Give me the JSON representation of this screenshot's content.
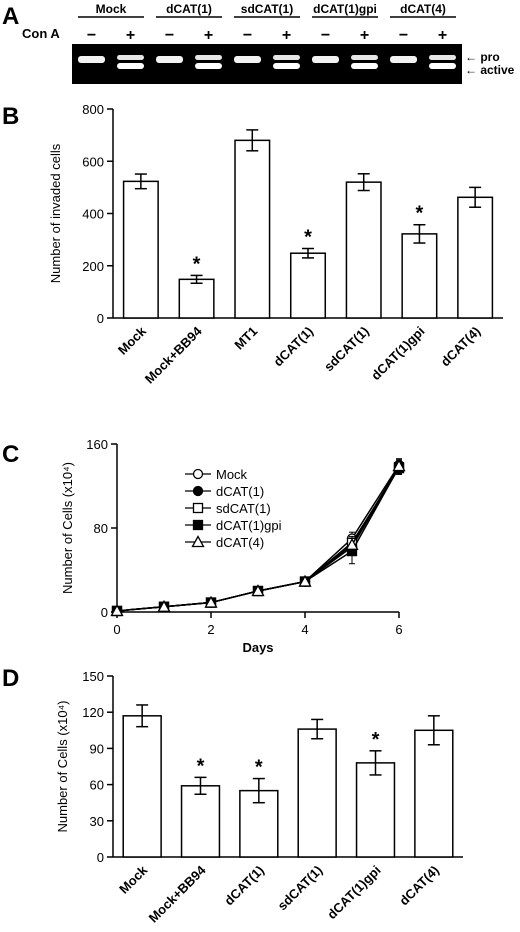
{
  "panels": {
    "a": "A",
    "b": "B",
    "c": "C",
    "d": "D"
  },
  "gel": {
    "lanes": [
      "Mock",
      "dCAT(1)",
      "sdCAT(1)",
      "dCAT(1)gpi",
      "dCAT(4)"
    ],
    "row_label": "Con A",
    "signs": [
      "−",
      "+",
      "−",
      "+",
      "−",
      "+",
      "−",
      "+",
      "−",
      "+"
    ],
    "band_labels": [
      "← pro",
      "← active"
    ]
  },
  "chart_data": [
    {
      "id": "B",
      "type": "bar",
      "categories": [
        "Mock",
        "Mock+BB94",
        "MT1",
        "dCAT(1)",
        "sdCAT(1)",
        "dCAT(1)gpi",
        "dCAT(4)"
      ],
      "values": [
        523,
        148,
        680,
        248,
        520,
        322,
        462
      ],
      "errors": [
        28,
        15,
        40,
        18,
        32,
        35,
        38
      ],
      "significant": [
        false,
        true,
        false,
        true,
        false,
        true,
        false
      ],
      "ylabel": "Number of invaded cells",
      "ylim": [
        0,
        800
      ],
      "yticks": [
        0,
        200,
        400,
        600,
        800
      ],
      "marker": "*"
    },
    {
      "id": "C",
      "type": "line",
      "x": [
        0,
        1,
        2,
        3,
        4,
        5,
        6
      ],
      "xlabel": "Days",
      "ylabel": "Number of Cells (x10⁴)",
      "xlim": [
        0,
        6
      ],
      "ylim": [
        0,
        160
      ],
      "xticks": [
        0,
        2,
        4,
        6
      ],
      "yticks": [
        0,
        80,
        160
      ],
      "legend_position": "upper-left",
      "series": [
        {
          "name": "Mock",
          "marker": "open-circle",
          "values": [
            1,
            5,
            9,
            20,
            29,
            70,
            140
          ],
          "errors": [
            0,
            1,
            1,
            2,
            2,
            6,
            6
          ]
        },
        {
          "name": "dCAT(1)",
          "marker": "filled-circle",
          "values": [
            1,
            5,
            9,
            20,
            29,
            62,
            138
          ],
          "errors": [
            0,
            1,
            1,
            2,
            2,
            6,
            6
          ]
        },
        {
          "name": "sdCAT(1)",
          "marker": "open-square",
          "values": [
            1,
            5,
            9,
            20,
            29,
            66,
            137
          ],
          "errors": [
            0,
            1,
            1,
            2,
            2,
            6,
            6
          ]
        },
        {
          "name": "dCAT(1)gpi",
          "marker": "filled-square",
          "values": [
            1,
            5,
            9,
            20,
            29,
            58,
            138
          ],
          "errors": [
            0,
            1,
            1,
            2,
            2,
            12,
            6
          ]
        },
        {
          "name": "dCAT(4)",
          "marker": "open-triangle",
          "values": [
            1,
            5,
            9,
            20,
            29,
            64,
            139
          ],
          "errors": [
            0,
            1,
            1,
            2,
            2,
            6,
            6
          ]
        }
      ]
    },
    {
      "id": "D",
      "type": "bar",
      "categories": [
        "Mock",
        "Mock+BB94",
        "dCAT(1)",
        "sdCAT(1)",
        "dCAT(1)gpi",
        "dCAT(4)"
      ],
      "values": [
        117,
        59,
        55,
        106,
        78,
        105
      ],
      "errors": [
        9,
        7,
        10,
        8,
        10,
        12
      ],
      "significant": [
        false,
        true,
        true,
        false,
        true,
        false
      ],
      "ylabel": "Number of Cells (x10⁴)",
      "ylim": [
        0,
        150
      ],
      "yticks": [
        0,
        30,
        60,
        90,
        120,
        150
      ],
      "marker": "*"
    }
  ]
}
